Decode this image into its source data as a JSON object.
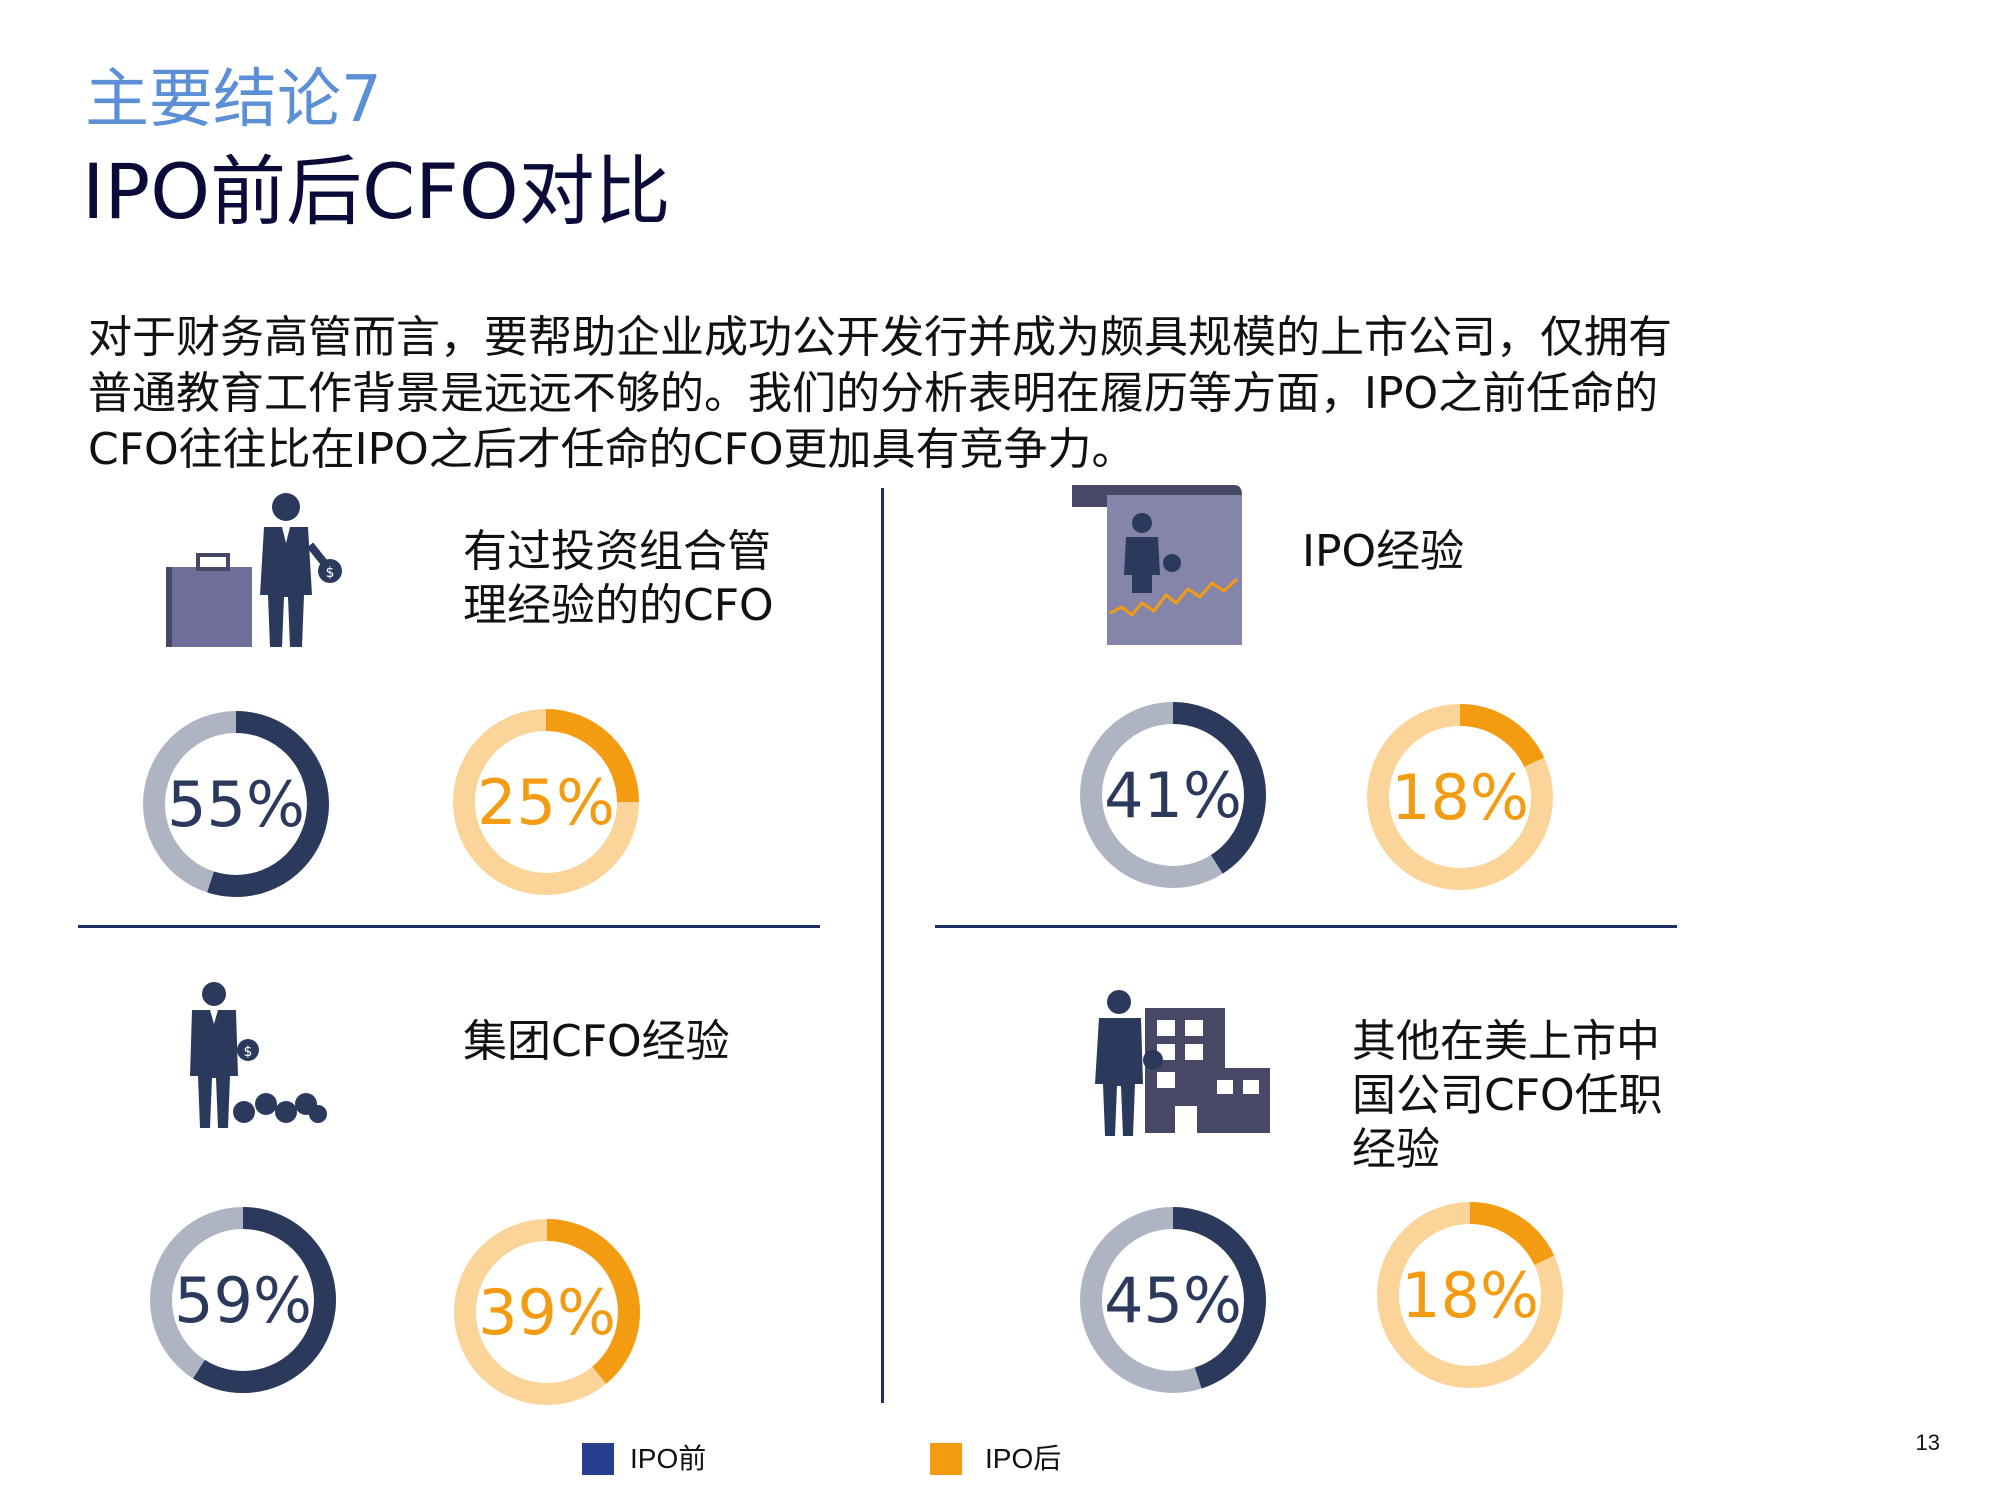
{
  "header": {
    "subtitle": "主要结论7",
    "title": "IPO前后CFO对比"
  },
  "intro_lines": [
    "对于财务高管而言，要帮助企业成功公开发行并成为颇具规模的上市公司，仅拥有",
    "普通教育工作背景是远远不够的。我们的分析表明在履历等方面，IPO之前任命的",
    "CFO往往比在IPO之后才任命的CFO更加具有竞争力。"
  ],
  "quadrants": [
    {
      "label_lines": [
        "有过投资组合管",
        "理经验的的CFO"
      ],
      "icon": "businessman-briefcase-icon",
      "before": {
        "value": 55,
        "text": "55%"
      },
      "after": {
        "value": 25,
        "text": "25%"
      }
    },
    {
      "label_lines": [
        "IPO经验"
      ],
      "icon": "stock-chart-businessman-icon",
      "before": {
        "value": 41,
        "text": "41%"
      },
      "after": {
        "value": 18,
        "text": "18%"
      }
    },
    {
      "label_lines": [
        "集团CFO经验"
      ],
      "icon": "businessman-money-bags-icon",
      "before": {
        "value": 59,
        "text": "59%"
      },
      "after": {
        "value": 39,
        "text": "39%"
      }
    },
    {
      "label_lines": [
        "其他在美上市中",
        "国公司CFO任职",
        "经验"
      ],
      "icon": "businessman-building-icon",
      "before": {
        "value": 45,
        "text": "45%"
      },
      "after": {
        "value": 18,
        "text": "18%"
      }
    }
  ],
  "legend": {
    "before_label": "IPO前",
    "after_label": "IPO后"
  },
  "page_number": "13",
  "colors": {
    "subtitle": "#5b8fd6",
    "title": "#0b0b3a",
    "navy": "#2b3a5c",
    "gray_track": "#aeb4c2",
    "orange": "#f39c12",
    "orange_track": "#fbd49a",
    "divider": "#1f2f63",
    "legend_navy": "#283f8f",
    "icon_purple": "#6e6e98"
  }
}
